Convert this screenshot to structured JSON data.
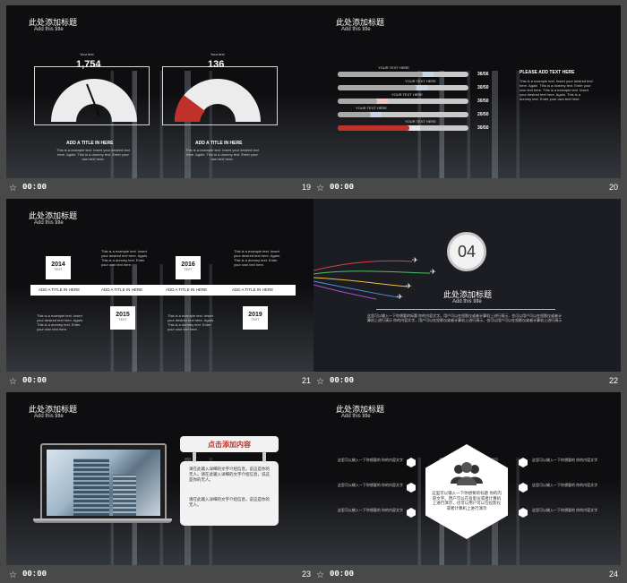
{
  "slides": [
    {
      "number": "19",
      "time": "00:00",
      "title": "此处添加标题",
      "subtitle": "Add this title",
      "gauges": [
        {
          "label": "Your text",
          "value": "1,754",
          "fill": 0.55,
          "color": "#e8e8e8"
        },
        {
          "label": "Your text",
          "value": "136",
          "fill": 0.3,
          "color": "#c0312b"
        }
      ],
      "heading": "ADD A TITLE IN HERE",
      "body": "This is a example text. Insert your desired text here. Again. This is a dummy text. Enter your own text here."
    },
    {
      "number": "20",
      "time": "00:00",
      "title": "此处添加标题",
      "subtitle": "Add this title",
      "bars": [
        {
          "label": "YOUR TEXT HERE",
          "value": "36/56",
          "fill": 0.65,
          "accent": "#c9d6e6"
        },
        {
          "label": "YOUR TEXT HERE",
          "value": "30/50",
          "fill": 0.6,
          "accent": "#c9d6e6"
        },
        {
          "label": "YOUR TEXT HERE",
          "value": "30/50",
          "fill": 0.3,
          "accent": "#f0c8c0"
        },
        {
          "label": "YOUR TEXT HERE",
          "value": "20/50",
          "fill": 0.25,
          "accent": "#c9d6e6"
        },
        {
          "label": "YOUR TEXT HERE",
          "value": "30/50",
          "fill": 0.55,
          "accent": "#c0312b"
        }
      ],
      "side_heading": "PLEASE ADD TEXT HERE",
      "side_body": "This is a example text. Insert your desired text here. Again. This is a dummy text. Enter your own text here. This is a example text. Insert your desired text here. Again. This is a dummy text. Enter your own text here."
    },
    {
      "number": "21",
      "time": "00:00",
      "title": "此处添加标题",
      "subtitle": "Add this title",
      "years": [
        "2014",
        "2015",
        "2016",
        "2019"
      ],
      "year_tag": "TEXT",
      "captions": [
        "ADD A TITLE IN HERE",
        "ADD A TITLE IN HERE",
        "ADD A TITLE IN HERE",
        "ADD A TITLE IN HERE"
      ],
      "body": "This is a example text. Insert your desired text here. Again. This is a dummy text. Enter your own text here."
    },
    {
      "number": "22",
      "time": "00:00",
      "section_number": "04",
      "title": "此处添加标题",
      "subtitle": "Add this title",
      "body": "这里可以输入一下你想要的标题 你的内容文字。用户可以在投影仪或者计算机上进行演示，也可以用户可以在投影仪或者计算机上进行演示 你的内容文字，用户可以在投影仪或者计算机上进行演示，也可以用户可以在投影仪或者计算机上进行演示"
    },
    {
      "number": "23",
      "time": "00:00",
      "title": "此处添加标题",
      "subtitle": "Add this title",
      "card_title": "点击添加内容",
      "card_body_1": "请在此输入详细的文字介绍信息，说这是你的无人。请在此输入详细的文字介绍信息，说这是你的无人。",
      "card_body_2": "请在此输入详细的文字介绍信息，说这是你的无人。"
    },
    {
      "number": "24",
      "time": "00:00",
      "title": "此处添加标题",
      "subtitle": "Add this title",
      "left_items": [
        "这里可以输入一下你想要的 你的内容文字",
        "这里可以输入一下你想要的 你的内容文字",
        "这里可以输入一下你想要的 你的内容文字"
      ],
      "right_items": [
        "这里可以输入一下你想要的 你的内容文字",
        "这里可以输入一下你想要的 你的内容文字",
        "这里可以输入一下你想要的 你的内容文字"
      ],
      "center_text": "这里可以输入一下你想要的标题 你的内容文字。用户可以在投影仪或者计算机上进行演示，也可以用户可以在投影仪或者计算机上进行演示"
    }
  ],
  "icons": {
    "star": "star-icon",
    "people": "people-icon",
    "plane": "plane-icon"
  },
  "colors": {
    "accent_red": "#c0312b",
    "panel": "#494949",
    "slide_bg": "#0e0e10"
  }
}
